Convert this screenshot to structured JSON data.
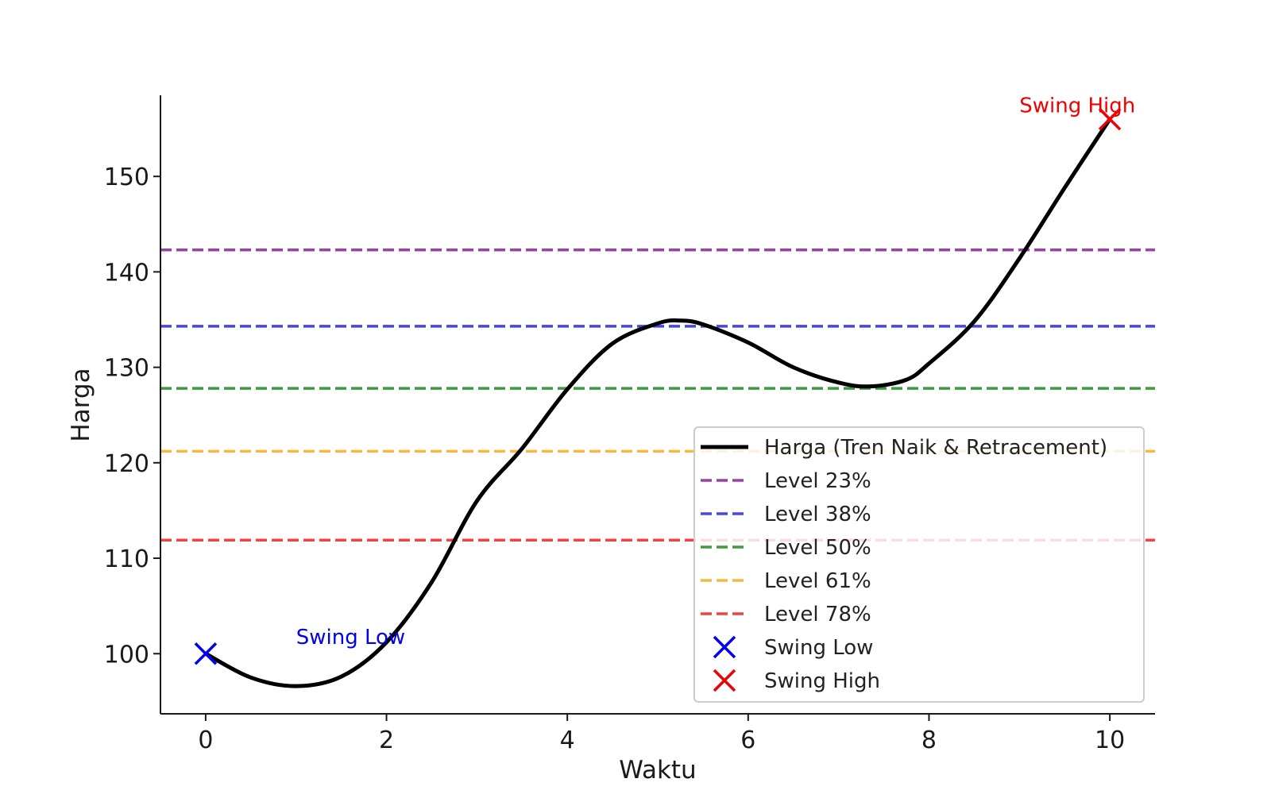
{
  "chart_data": {
    "type": "line",
    "title": "",
    "xlabel": "Waktu",
    "ylabel": "Harga",
    "xlim": [
      -0.5,
      10.5
    ],
    "ylim": [
      93.7,
      158.5
    ],
    "x_ticks": [
      0,
      2,
      4,
      6,
      8,
      10
    ],
    "y_ticks": [
      100,
      110,
      120,
      130,
      140,
      150
    ],
    "grid": false,
    "legend_position": "lower-right",
    "series": [
      {
        "name": "Harga (Tren Naik & Retracement)",
        "color": "#000000",
        "x": [
          0,
          0.5,
          1.0,
          1.5,
          2.0,
          2.5,
          3.0,
          3.5,
          4.0,
          4.5,
          5.0,
          5.25,
          5.5,
          6.0,
          6.5,
          7.0,
          7.35,
          7.75,
          8.0,
          8.5,
          9.0,
          9.5,
          10.0
        ],
        "values": [
          100.0,
          97.5,
          96.6,
          97.6,
          101.2,
          107.5,
          116.0,
          121.5,
          127.7,
          132.5,
          134.6,
          134.9,
          134.5,
          132.6,
          130.0,
          128.4,
          128.0,
          128.7,
          130.4,
          134.8,
          141.4,
          148.8,
          156.0
        ]
      }
    ],
    "levels": [
      {
        "name": "Level 23%",
        "value": 142.3,
        "color": "#9b3fa9"
      },
      {
        "name": "Level 38%",
        "value": 134.3,
        "color": "#4747e8"
      },
      {
        "name": "Level 50%",
        "value": 127.8,
        "color": "#3f9b3f"
      },
      {
        "name": "Level 61%",
        "value": 121.2,
        "color": "#f5b944"
      },
      {
        "name": "Level 78%",
        "value": 111.9,
        "color": "#ee4444"
      }
    ],
    "markers": [
      {
        "name": "Swing Low",
        "x": 0,
        "y": 100.0,
        "color": "#0000ee"
      },
      {
        "name": "Swing High",
        "x": 10,
        "y": 156.0,
        "color": "#ee0000"
      }
    ],
    "annotations": [
      {
        "text": "Swing Low",
        "x": 1.0,
        "y": 101.0,
        "color": "#0000ee"
      },
      {
        "text": "Swing High",
        "x": 9.0,
        "y": 156.7,
        "color": "#ee0000"
      }
    ]
  }
}
